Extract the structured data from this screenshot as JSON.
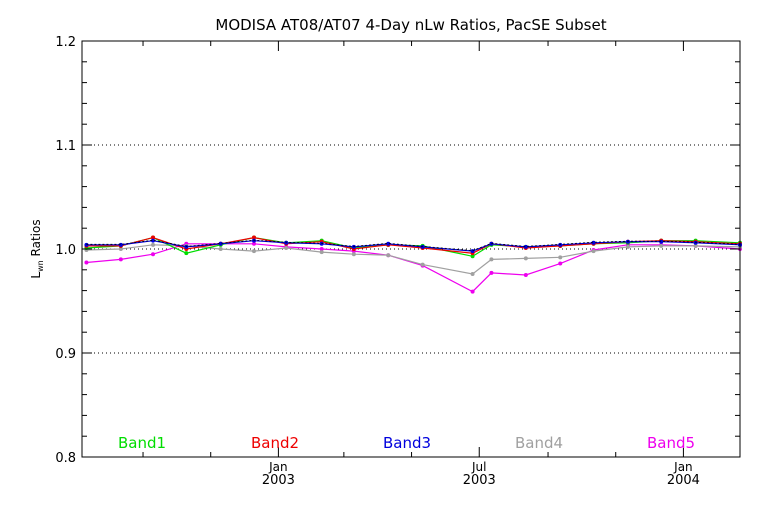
{
  "chart_data": {
    "type": "line",
    "title": "MODISA AT08/AT07 4-Day nLw Ratios, PacSE Subset",
    "xlabel": "",
    "ylabel_main": "L",
    "ylabel_sub": "wn",
    "ylabel_rest": " Ratios",
    "ylim": [
      0.8,
      1.2
    ],
    "yticks": [
      {
        "value": 0.8,
        "label": "0.8"
      },
      {
        "value": 0.9,
        "label": "0.9"
      },
      {
        "value": 1.0,
        "label": "1.0"
      },
      {
        "value": 1.1,
        "label": "1.1"
      },
      {
        "value": 1.2,
        "label": "1.2"
      }
    ],
    "y_minor_step": 0.02,
    "y_dotted_grid": [
      0.9,
      1.0,
      1.1
    ],
    "xlim": [
      "2002-07-08",
      "2004-02-21"
    ],
    "x_major_ticks": [
      {
        "date": "2003-01-01",
        "line1": "Jan",
        "line2": "2003"
      },
      {
        "date": "2003-07-01",
        "line1": "Jul",
        "line2": "2003"
      },
      {
        "date": "2004-01-01",
        "line1": "Jan",
        "line2": "2004"
      }
    ],
    "x_minor_ticks": [
      "2002-09-01",
      "2002-11-01",
      "2003-03-01",
      "2003-05-01",
      "2003-09-01",
      "2003-11-01"
    ],
    "x": [
      "2002-07-12",
      "2002-08-12",
      "2002-09-10",
      "2002-10-10",
      "2002-11-10",
      "2002-12-10",
      "2003-01-08",
      "2003-02-09",
      "2003-03-10",
      "2003-04-10",
      "2003-05-11",
      "2003-06-25",
      "2003-07-12",
      "2003-08-12",
      "2003-09-12",
      "2003-10-12",
      "2003-11-12",
      "2003-12-12",
      "2004-01-12",
      "2004-02-21"
    ],
    "series": [
      {
        "name": "Band1",
        "color": "#00dd00",
        "values": [
          1.001,
          1.003,
          1.011,
          0.996,
          1.004,
          1.011,
          1.006,
          1.008,
          1.001,
          1.004,
          1.003,
          0.993,
          1.004,
          1.002,
          1.003,
          1.005,
          1.006,
          1.008,
          1.008,
          1.006
        ]
      },
      {
        "name": "Band2",
        "color": "#ee0000",
        "values": [
          1.003,
          1.003,
          1.011,
          1.0,
          1.005,
          1.011,
          1.005,
          1.007,
          1.0,
          1.004,
          1.001,
          0.996,
          1.005,
          1.001,
          1.003,
          1.005,
          1.007,
          1.008,
          1.007,
          1.005
        ]
      },
      {
        "name": "Band3",
        "color": "#0000dd",
        "values": [
          1.004,
          1.004,
          1.008,
          1.002,
          1.005,
          1.008,
          1.006,
          1.005,
          1.002,
          1.005,
          1.002,
          0.998,
          1.005,
          1.002,
          1.004,
          1.006,
          1.007,
          1.007,
          1.006,
          1.004
        ]
      },
      {
        "name": "Band4",
        "color": "#a0a0a0",
        "values": [
          0.999,
          1.0,
          1.004,
          1.003,
          1.0,
          0.998,
          1.001,
          0.997,
          0.995,
          0.994,
          0.985,
          0.976,
          0.99,
          0.991,
          0.992,
          0.998,
          1.002,
          1.003,
          1.003,
          1.002
        ]
      },
      {
        "name": "Band5",
        "color": "#ee00ee",
        "values": [
          0.987,
          0.99,
          0.995,
          1.005,
          1.005,
          1.005,
          1.002,
          1.0,
          0.998,
          0.994,
          0.984,
          0.959,
          0.977,
          0.975,
          0.986,
          0.999,
          1.004,
          1.004,
          1.003,
          1.0
        ]
      }
    ],
    "legend_placement": "bottom, inside plot, horizontal",
    "grid": "dotted at 0.9, 1.0, 1.1",
    "line_color": "#000000"
  }
}
